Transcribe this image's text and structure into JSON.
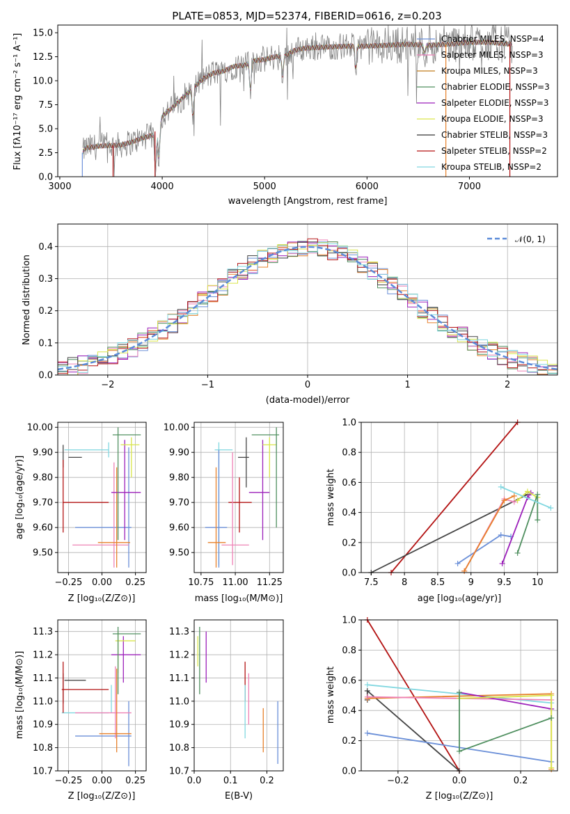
{
  "chart_data": [
    {
      "type": "line",
      "title": "PLATE=0853, MJD=52374, FIBERID=0616, z=0.203",
      "xlabel": "wavelength [Angstrom, rest frame]",
      "ylabel": "Flux [fλ10⁻¹⁷ erg cm⁻² s⁻¹ A⁻¹]",
      "xlim": [
        2980,
        7860
      ],
      "ylim": [
        0,
        15.8
      ],
      "xticks": [
        3000,
        4000,
        5000,
        6000,
        7000
      ],
      "yticks": [
        0.0,
        2.5,
        5.0,
        7.5,
        10.0,
        12.5,
        15.0
      ],
      "legend": "top-right",
      "series": [
        {
          "name": "Chabrier MILES, N_SSP=4",
          "color": "#6a8fd8"
        },
        {
          "name": "Salpeter MILES, N_SSP=3",
          "color": "#ee82b6"
        },
        {
          "name": "Kroupa MILES, N_SSP=3",
          "color": "#c07c1a"
        },
        {
          "name": "Chabrier ELODIE, N_SSP=3",
          "color": "#4f8f5f"
        },
        {
          "name": "Salpeter ELODIE, N_SSP=3",
          "color": "#9b1fba"
        },
        {
          "name": "Kroupa ELODIE, N_SSP=3",
          "color": "#d9e54a"
        },
        {
          "name": "Chabrier STELIB, N_SSP=3",
          "color": "#333333"
        },
        {
          "name": "Salpeter STELIB, N_SSP=2",
          "color": "#b31212"
        },
        {
          "name": "Kroupa STELIB, N_SSP=2",
          "color": "#80d7e0"
        }
      ],
      "observed_color": "#808080",
      "continuum": {
        "x": [
          3220,
          3250,
          3400,
          3600,
          3700,
          3800,
          3900,
          3950,
          4000,
          4100,
          4200,
          4300,
          4400,
          4500,
          4600,
          4700,
          4800,
          4900,
          5000,
          5100,
          5200,
          5300,
          5400,
          5600,
          5800,
          6000,
          6200,
          6400,
          6600,
          6800,
          7000,
          7200,
          7400
        ],
        "y": [
          2.5,
          3.0,
          3.2,
          3.3,
          3.6,
          4.0,
          4.3,
          5.0,
          6.3,
          7.2,
          8.2,
          9.2,
          10.2,
          10.8,
          11.0,
          11.5,
          11.6,
          12.1,
          12.2,
          12.5,
          12.6,
          13.2,
          13.4,
          13.5,
          13.6,
          13.6,
          13.7,
          13.8,
          13.7,
          13.8,
          14.0,
          14.0,
          13.8
        ]
      }
    },
    {
      "type": "histogram",
      "xlabel": "(data-model)/error",
      "ylabel": "Normed distribution",
      "xlim": [
        -2.5,
        2.5
      ],
      "ylim": [
        0,
        0.47
      ],
      "xticks": [
        -2,
        -1,
        0,
        1,
        2
      ],
      "xtick_labels": [
        "−2",
        "−1",
        "0",
        "1",
        "2"
      ],
      "yticks": [
        0.0,
        0.1,
        0.2,
        0.3,
        0.4
      ],
      "legend": "top-right",
      "reference_curve": {
        "name": "𝒩(0, 1)",
        "color": "#5a8ad8",
        "mean": 0,
        "sd": 1
      },
      "bins": 50
    },
    {
      "type": "scatter",
      "xlabel": "Z [log₁₀(Z/Z⊙)]",
      "ylabel": "age  [log₁₀(age/yr)]",
      "xlim": [
        -0.33,
        0.33
      ],
      "ylim": [
        9.42,
        10.02
      ],
      "xticks": [
        -0.25,
        0.0,
        0.25
      ],
      "xtick_labels": [
        "−0.25",
        "0.00",
        "0.25"
      ],
      "yticks": [
        9.5,
        9.6,
        9.7,
        9.8,
        9.9,
        10.0
      ]
    },
    {
      "type": "scatter",
      "xlabel": "mass [log₁₀(M/M⊙)]",
      "xlim": [
        10.7,
        11.35
      ],
      "ylim": [
        9.42,
        10.02
      ],
      "xticks": [
        10.75,
        11.0,
        11.25
      ],
      "xtick_labels": [
        "10.75",
        "11.00",
        "11.25"
      ],
      "yticks": [
        9.5,
        9.6,
        9.7,
        9.8,
        9.9,
        10.0
      ]
    },
    {
      "type": "line",
      "xlabel": "age  [log₁₀(age/yr)]",
      "ylabel": "mass weight",
      "xlim": [
        7.35,
        10.3
      ],
      "ylim": [
        0,
        1.0
      ],
      "xticks": [
        7.5,
        8.0,
        8.5,
        9.0,
        9.5,
        10.0
      ],
      "yticks": [
        0.0,
        0.2,
        0.4,
        0.6,
        0.8,
        1.0
      ],
      "series": [
        {
          "color": "#b31212",
          "x": [
            7.8,
            9.7
          ],
          "y": [
            0.0,
            1.0
          ]
        },
        {
          "color": "#444444",
          "x": [
            7.5,
            9.85
          ],
          "y": [
            0.0,
            0.52
          ]
        },
        {
          "color": "#6a8fd8",
          "x": [
            8.8,
            9.45,
            9.6
          ],
          "y": [
            0.06,
            0.25,
            0.24
          ]
        },
        {
          "color": "#ee82b6",
          "x": [
            8.9,
            9.5,
            9.65
          ],
          "y": [
            0.01,
            0.49,
            0.47
          ]
        },
        {
          "color": "#e7802a",
          "x": [
            8.9,
            9.5,
            9.65
          ],
          "y": [
            0.01,
            0.48,
            0.51
          ]
        },
        {
          "color": "#9b1fba",
          "x": [
            9.47,
            9.85,
            9.9
          ],
          "y": [
            0.06,
            0.5,
            0.53
          ]
        },
        {
          "color": "#d9e54a",
          "x": [
            9.7,
            9.85,
            10.0
          ],
          "y": [
            0.48,
            0.54,
            0.5
          ]
        },
        {
          "color": "#4f8f5f",
          "x": [
            9.7,
            10.0,
            10.0
          ],
          "y": [
            0.13,
            0.52,
            0.35
          ]
        },
        {
          "color": "#80d7e0",
          "x": [
            9.45,
            10.2
          ],
          "y": [
            0.57,
            0.43
          ]
        }
      ]
    },
    {
      "type": "scatter",
      "xlabel": "Z [log₁₀(Z/Z⊙)]",
      "ylabel": "mass [log₁₀(M/M⊙)]",
      "xlim": [
        -0.33,
        0.33
      ],
      "ylim": [
        10.7,
        11.35
      ],
      "xticks": [
        -0.25,
        0.0,
        0.25
      ],
      "xtick_labels": [
        "−0.25",
        "0.00",
        "0.25"
      ],
      "yticks": [
        10.7,
        10.8,
        10.9,
        11.0,
        11.1,
        11.2,
        11.3
      ]
    },
    {
      "type": "scatter",
      "xlabel": "E(B-V)",
      "xlim": [
        0.0,
        0.245
      ],
      "ylim": [
        10.7,
        11.35
      ],
      "xticks": [
        0.0,
        0.1,
        0.2
      ],
      "xtick_labels": [
        "0.0",
        "0.1",
        "0.2"
      ],
      "yticks": [
        10.7,
        10.8,
        10.9,
        11.0,
        11.1,
        11.2,
        11.3
      ]
    },
    {
      "type": "line",
      "xlabel": "Z [log₁₀(Z/Z⊙)]",
      "ylabel": "mass weight",
      "xlim": [
        -0.32,
        0.32
      ],
      "ylim": [
        0,
        1.0
      ],
      "xticks": [
        -0.2,
        0.0,
        0.2
      ],
      "xtick_labels": [
        "−0.2",
        "0.0",
        "0.2"
      ],
      "yticks": [
        0.0,
        0.2,
        0.4,
        0.6,
        0.8,
        1.0
      ],
      "series": [
        {
          "color": "#b31212",
          "x": [
            -0.3,
            0.0
          ],
          "y": [
            1.0,
            0.0
          ]
        },
        {
          "color": "#444444",
          "x": [
            -0.3,
            -0.3,
            0.0
          ],
          "y": [
            0.47,
            0.53,
            0.0
          ]
        },
        {
          "color": "#6a8fd8",
          "x": [
            -0.3,
            0.3
          ],
          "y": [
            0.25,
            0.06
          ]
        },
        {
          "color": "#80d7e0",
          "x": [
            -0.3,
            0.3
          ],
          "y": [
            0.57,
            0.45
          ]
        },
        {
          "color": "#e7802a",
          "x": [
            -0.3,
            0.3,
            0.3
          ],
          "y": [
            0.48,
            0.51,
            0.01
          ]
        },
        {
          "color": "#ee82b6",
          "x": [
            -0.3,
            0.3
          ],
          "y": [
            0.49,
            0.47
          ]
        },
        {
          "color": "#9b1fba",
          "x": [
            0.0,
            0.3
          ],
          "y": [
            0.52,
            0.41
          ]
        },
        {
          "color": "#d9e54a",
          "x": [
            0.0,
            0.3,
            0.3
          ],
          "y": [
            0.48,
            0.5,
            0.02
          ]
        },
        {
          "color": "#4f8f5f",
          "x": [
            0.0,
            0.0,
            0.3
          ],
          "y": [
            0.52,
            0.13,
            0.35
          ]
        }
      ]
    }
  ],
  "palette": [
    "#6a8fd8",
    "#ee82b6",
    "#e7802a",
    "#4f8f5f",
    "#9b1fba",
    "#d9e54a",
    "#444444",
    "#b31212",
    "#80d7e0"
  ]
}
